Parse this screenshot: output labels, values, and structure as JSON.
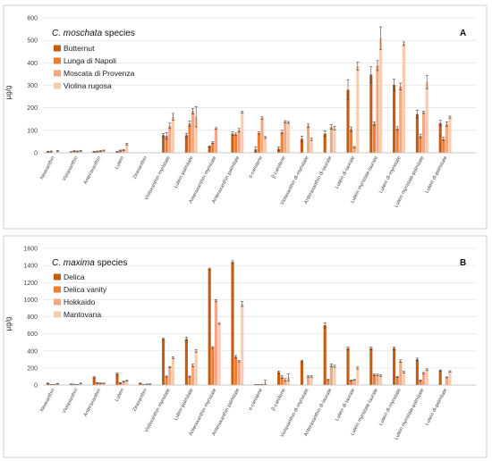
{
  "chart_data": [
    {
      "type": "bar",
      "panel_label": "A",
      "title_italic": "C. moschata",
      "title_rest": " species",
      "ylabel": "µg/g",
      "ylim": [
        0,
        600
      ],
      "yticks": [
        0,
        100,
        200,
        300,
        400,
        500,
        600
      ],
      "categories": [
        "Neoxanthin",
        "Violaxanthin",
        "Anteraxanthin",
        "Lutein",
        "Zeaxanthin",
        "Violaxanthin myristate",
        "Lutein palmitate",
        "Anteraxanthin myristate",
        "Anteraxanthin palmitate",
        "α-carotene",
        "β-carotene",
        "Violaxanthin di-myristate",
        "Anteraxanthin di-laurate",
        "Lutein di-laurate",
        "Lutein myristate-laurate",
        "Lutein di-myristate",
        "Lutein myristate-palmitate",
        "Lutein di-palmitate"
      ],
      "legend_position": "top-left",
      "series": [
        {
          "name": "Butternut",
          "color": "#c55a11",
          "values": [
            5,
            3,
            5,
            5,
            0,
            78,
            78,
            28,
            85,
            15,
            18,
            62,
            85,
            280,
            348,
            302,
            172,
            132
          ],
          "errors": [
            2,
            2,
            2,
            2,
            0,
            8,
            8,
            3,
            8,
            12,
            8,
            12,
            12,
            45,
            35,
            25,
            18,
            12
          ]
        },
        {
          "name": "Lunga di Napoli",
          "color": "#ed7d31",
          "values": [
            6,
            8,
            6,
            10,
            0,
            75,
            130,
            45,
            82,
            88,
            92,
            0,
            0,
            105,
            130,
            108,
            75,
            62
          ],
          "errors": [
            2,
            2,
            2,
            2,
            0,
            15,
            12,
            4,
            6,
            5,
            8,
            0,
            0,
            10,
            8,
            8,
            8,
            8
          ]
        },
        {
          "name": "Moscata di Provenza",
          "color": "#f4a582",
          "values": [
            0,
            6,
            8,
            12,
            0,
            120,
            185,
            108,
            100,
            155,
            138,
            120,
            115,
            25,
            388,
            295,
            180,
            128
          ],
          "errors": [
            0,
            2,
            2,
            3,
            0,
            12,
            12,
            4,
            8,
            5,
            5,
            8,
            10,
            3,
            22,
            15,
            5,
            10
          ]
        },
        {
          "name": "Violina rugosa",
          "color": "#f8cbad",
          "values": [
            8,
            9,
            10,
            38,
            0,
            160,
            160,
            0,
            180,
            68,
            135,
            60,
            110,
            385,
            510,
            485,
            315,
            158
          ],
          "errors": [
            2,
            2,
            2,
            4,
            0,
            15,
            45,
            0,
            4,
            4,
            4,
            5,
            8,
            18,
            50,
            8,
            30,
            5
          ]
        }
      ]
    },
    {
      "type": "bar",
      "panel_label": "B",
      "title_italic": "C. maxima",
      "title_rest": " species",
      "ylabel": "µg/g",
      "ylim": [
        0,
        1600
      ],
      "yticks": [
        0,
        200,
        400,
        600,
        800,
        1000,
        1200,
        1400,
        1600
      ],
      "categories": [
        "Neoxanthin",
        "Violaxanthin",
        "Anteraxanthin",
        "Lutein",
        "Zeaxanthin",
        "Violaxanthin myristate",
        "Lutein palmitate",
        "Anteraxanthin myristate",
        "Anteraxanthin palmitate",
        "α-carotene",
        "β-carotene",
        "Violaxanthin di-myristate",
        "Anteraxanthin di-laurate",
        "Lutein di-laurate",
        "Lutein myristate-laurate",
        "Lutein di-myristate",
        "Lutein myristate-palmitate",
        "Lutein di-palmitate"
      ],
      "legend_position": "top-left",
      "series": [
        {
          "name": "Delica",
          "color": "#c55a11",
          "values": [
            20,
            10,
            90,
            130,
            20,
            540,
            540,
            1360,
            1440,
            5,
            150,
            280,
            700,
            430,
            430,
            430,
            300,
            170
          ],
          "errors": [
            3,
            3,
            8,
            12,
            3,
            8,
            20,
            10,
            15,
            3,
            15,
            8,
            30,
            15,
            15,
            15,
            15,
            8
          ]
        },
        {
          "name": "Delica vanity",
          "color": "#ed7d31",
          "values": [
            5,
            8,
            25,
            25,
            5,
            100,
            100,
            440,
            330,
            5,
            95,
            0,
            60,
            55,
            120,
            95,
            55,
            0
          ],
          "errors": [
            2,
            2,
            4,
            4,
            2,
            6,
            6,
            10,
            15,
            2,
            15,
            0,
            6,
            5,
            8,
            8,
            5,
            0
          ]
        },
        {
          "name": "Hokkaido",
          "color": "#f4a582",
          "values": [
            5,
            5,
            20,
            40,
            10,
            210,
            230,
            990,
            280,
            5,
            60,
            100,
            230,
            60,
            120,
            280,
            140,
            90
          ],
          "errors": [
            2,
            2,
            4,
            5,
            2,
            8,
            15,
            10,
            10,
            4,
            15,
            8,
            15,
            5,
            8,
            15,
            8,
            5
          ]
        },
        {
          "name": "Mantovana",
          "color": "#f8cbad",
          "values": [
            15,
            20,
            20,
            50,
            10,
            320,
            400,
            720,
            950,
            30,
            90,
            100,
            220,
            200,
            110,
            150,
            180,
            160
          ],
          "errors": [
            3,
            3,
            4,
            6,
            3,
            10,
            15,
            10,
            30,
            25,
            40,
            8,
            12,
            12,
            8,
            10,
            10,
            8
          ]
        }
      ]
    }
  ]
}
